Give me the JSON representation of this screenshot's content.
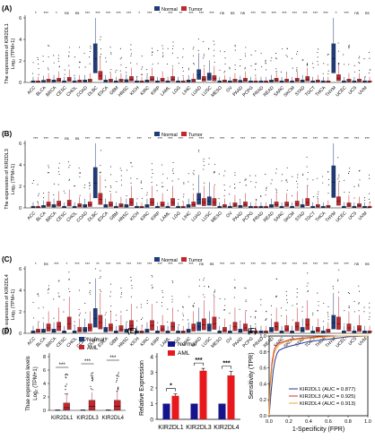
{
  "chart_data": [
    {
      "panel": "(A)",
      "type": "box",
      "ylabel": "The expression of KIR2DL1",
      "ylabel2": "Log₂ (TPM+1)",
      "ylim": [
        0,
        6
      ],
      "yticks": [
        0,
        2,
        4,
        6
      ],
      "legend": [
        "Normal",
        "Tumor"
      ],
      "categories": [
        "ACC",
        "BLCA",
        "BRCA",
        "CESC",
        "CHOL",
        "COAD",
        "DLBC",
        "ESCA",
        "GBM",
        "HNSC",
        "KICH",
        "KIRC",
        "KIRP",
        "LAML",
        "LGG",
        "LIHC",
        "LUAD",
        "LUSC",
        "MESO",
        "OV",
        "PAAD",
        "PCPG",
        "PRAD",
        "READ",
        "SARC",
        "SKCM",
        "STAD",
        "TGCT",
        "THCA",
        "THYM",
        "UCEC",
        "UCS",
        "UVM"
      ],
      "significance": [
        "*",
        "***",
        "*",
        "ns",
        "ns",
        "***",
        "***",
        "***",
        "***",
        "***",
        "*",
        "***",
        "*",
        "***",
        "**",
        "***",
        "***",
        "***",
        "ns",
        "ns",
        "ns",
        "***",
        "***",
        "***",
        "***",
        "***",
        "***",
        "***",
        "***",
        "*",
        "***",
        "ns",
        "ns"
      ],
      "median_normal": [
        0.05,
        0.08,
        0.1,
        0.05,
        0.05,
        0.1,
        2.2,
        0.1,
        0.05,
        0.12,
        0.05,
        0.1,
        0.05,
        0.05,
        0.05,
        0.1,
        0.7,
        0.5,
        0.05,
        0.05,
        0.08,
        0.05,
        0.05,
        0.1,
        0.05,
        0.05,
        0.1,
        0.05,
        0.05,
        2.2,
        0.05,
        0.05,
        0.05
      ],
      "median_tumor": [
        0.05,
        0.15,
        0.2,
        0.25,
        0.1,
        0.15,
        0.6,
        0.15,
        0.15,
        0.3,
        0.05,
        0.3,
        0.2,
        0.3,
        0.05,
        0.15,
        0.3,
        0.35,
        0.1,
        0.15,
        0.2,
        0.05,
        0.05,
        0.2,
        0.15,
        0.2,
        0.3,
        0.1,
        0.05,
        0.4,
        0.15,
        0.15,
        0.05
      ]
    },
    {
      "panel": "(B)",
      "type": "box",
      "ylabel": "The expression of KIR2DL3",
      "ylabel2": "Log₂ (TPM+1)",
      "ylim": [
        0,
        6
      ],
      "yticks": [
        0,
        2,
        4,
        6
      ],
      "legend": [
        "Normal",
        "Tumor"
      ],
      "categories": [
        "ACC",
        "BLCA",
        "BRCA",
        "CESC",
        "CHOL",
        "COAD",
        "DLBC",
        "ESCA",
        "GBM",
        "HNSC",
        "KICH",
        "KIRC",
        "KIRP",
        "LAML",
        "LGG",
        "LIHC",
        "LUAD",
        "LUSC",
        "MESO",
        "OV",
        "PAAD",
        "PCPG",
        "PRAD",
        "READ",
        "SARC",
        "SKCM",
        "STAD",
        "TGCT",
        "THCA",
        "THYM",
        "UCEC",
        "UCS",
        "UVM"
      ],
      "significance": [
        "***",
        "***",
        "***",
        "ns",
        "ns",
        "***",
        "***",
        "***",
        "***",
        "**",
        "***",
        "**",
        "***",
        "***",
        "***",
        "***",
        "***",
        "***",
        "***",
        "**",
        "***",
        "***",
        "***",
        "***",
        "***",
        "***",
        "***",
        "***",
        "***",
        "***",
        "***",
        "***",
        "***"
      ],
      "median_normal": [
        0.05,
        0.1,
        0.15,
        0.05,
        0.05,
        0.15,
        2.3,
        0.15,
        0.05,
        0.15,
        0.05,
        0.15,
        0.05,
        0.05,
        0.05,
        0.15,
        0.8,
        0.6,
        0.05,
        0.05,
        0.1,
        0.05,
        0.05,
        0.15,
        0.05,
        0.05,
        0.15,
        0.05,
        0.05,
        2.4,
        0.05,
        0.05,
        0.05
      ],
      "median_tumor": [
        0.05,
        0.3,
        0.35,
        0.4,
        0.2,
        0.3,
        0.8,
        0.3,
        0.2,
        0.5,
        0.05,
        0.5,
        0.3,
        0.5,
        0.05,
        0.3,
        0.5,
        0.5,
        0.15,
        0.25,
        0.3,
        0.05,
        0.05,
        0.3,
        0.3,
        0.35,
        0.5,
        0.15,
        0.1,
        0.6,
        0.25,
        0.2,
        0.05
      ]
    },
    {
      "panel": "(C)",
      "type": "box",
      "ylabel": "The expression of KIR2DL4",
      "ylabel2": "Log₂ (TPM+1)",
      "ylim": [
        0,
        6
      ],
      "yticks": [
        0,
        2,
        4,
        6
      ],
      "legend": [
        "Normal",
        "Tumor"
      ],
      "categories": [
        "ACC",
        "BLCA",
        "BRCA",
        "CESC",
        "CHOL",
        "COAD",
        "DLBC",
        "ESCA",
        "GBM",
        "HNSC",
        "KICH",
        "KIRC",
        "KIRP",
        "LAML",
        "LGG",
        "LIHC",
        "LUAD",
        "LUSC",
        "MESO",
        "OV",
        "PAAD",
        "PCPG",
        "PRAD",
        "READ",
        "SARC",
        "SKCM",
        "STAD",
        "TGCT",
        "THCA",
        "THYM",
        "UCEC",
        "UCS",
        "UVM"
      ],
      "significance": [
        "*",
        "ns",
        "***",
        "*",
        "***",
        "***",
        "**",
        "***",
        "***",
        "***",
        "***",
        "***",
        "***",
        "***",
        "***",
        "***",
        "ns",
        "ns",
        "***",
        "***",
        "***",
        "***",
        "***",
        "***",
        "***",
        "***",
        "***",
        "***",
        "***",
        "***",
        "***",
        "ns",
        "ns"
      ],
      "median_normal": [
        0.1,
        0.2,
        0.2,
        0.1,
        0.1,
        0.3,
        1.4,
        0.3,
        0.1,
        0.2,
        0.1,
        0.2,
        0.1,
        0.1,
        0.1,
        0.2,
        0.6,
        0.5,
        0.1,
        0.1,
        0.2,
        0.1,
        0.1,
        0.3,
        0.1,
        0.1,
        0.3,
        0.1,
        0.1,
        1.0,
        0.1,
        0.1,
        0.1
      ],
      "median_tumor": [
        0.2,
        0.5,
        0.6,
        0.9,
        0.3,
        0.5,
        1.0,
        0.5,
        0.4,
        0.7,
        0.1,
        0.7,
        0.4,
        0.6,
        0.1,
        0.5,
        0.8,
        0.9,
        0.3,
        0.6,
        0.5,
        0.1,
        0.1,
        0.6,
        0.4,
        0.6,
        0.8,
        0.3,
        0.2,
        0.9,
        0.5,
        0.4,
        0.1
      ]
    },
    {
      "panel": "(D)",
      "type": "box",
      "ylabel": "Thae expression levels",
      "ylabel2": "Log₂ (TPM+1)",
      "ylim": [
        0,
        8
      ],
      "yticks": [
        0,
        2,
        4,
        6,
        8
      ],
      "legend": [
        "Normal",
        "AML"
      ],
      "categories": [
        "KIR2DL1",
        "KIR2DL3",
        "KIR2DL4"
      ],
      "significance": [
        "***",
        "***",
        "***"
      ],
      "median_normal": [
        0.02,
        0.02,
        0.02
      ],
      "median_tumor": [
        0.4,
        0.6,
        0.6
      ]
    },
    {
      "panel": "(E)",
      "type": "bar",
      "ylabel": "Relative Expression",
      "ylim": [
        0,
        4
      ],
      "yticks": [
        0,
        1,
        2,
        3,
        4
      ],
      "legend": [
        "Normal",
        "AML"
      ],
      "categories": [
        "KIR2DL1",
        "KIR2DL3",
        "KIR2DL4"
      ],
      "significance": [
        "*",
        "***",
        "***"
      ],
      "series": [
        {
          "name": "Normal",
          "values": [
            1.0,
            1.0,
            1.0
          ],
          "errors": [
            0.0,
            0.0,
            0.0
          ]
        },
        {
          "name": "AML",
          "values": [
            1.5,
            3.1,
            2.8
          ],
          "errors": [
            0.12,
            0.15,
            0.25
          ]
        }
      ]
    },
    {
      "panel": "(F)",
      "type": "line",
      "xlabel": "1-Specificity (FPR)",
      "ylabel": "Sensitivity (TPR)",
      "xlim": [
        0,
        1
      ],
      "ylim": [
        0,
        1
      ],
      "ticks": [
        0.0,
        0.2,
        0.4,
        0.6,
        0.8,
        1.0
      ],
      "series": [
        {
          "name": "KIR2DL1 (AUC = 0.877)",
          "color": "#2b3a8f",
          "x": [
            0,
            0.02,
            0.04,
            0.06,
            0.08,
            0.1,
            0.15,
            0.2,
            0.3,
            0.4,
            0.6,
            0.8,
            1.0
          ],
          "y": [
            0,
            0.3,
            0.55,
            0.7,
            0.78,
            0.82,
            0.85,
            0.87,
            0.9,
            0.93,
            0.96,
            0.99,
            1.0
          ]
        },
        {
          "name": "KIR2DL3 (AUC = 0.925)",
          "color": "#d9312b",
          "x": [
            0,
            0.01,
            0.03,
            0.05,
            0.07,
            0.1,
            0.15,
            0.2,
            0.3,
            0.5,
            0.7,
            1.0
          ],
          "y": [
            0,
            0.4,
            0.68,
            0.82,
            0.88,
            0.91,
            0.93,
            0.95,
            0.97,
            0.99,
            1.0,
            1.0
          ]
        },
        {
          "name": "KIR2DL4 (AUC = 0.913)",
          "color": "#e8a33c",
          "x": [
            0,
            0.01,
            0.03,
            0.05,
            0.08,
            0.1,
            0.15,
            0.2,
            0.3,
            0.5,
            0.7,
            1.0
          ],
          "y": [
            0,
            0.35,
            0.62,
            0.78,
            0.86,
            0.89,
            0.92,
            0.94,
            0.96,
            0.98,
            1.0,
            1.0
          ]
        }
      ]
    }
  ],
  "colors": {
    "normal": "#1f3b7a",
    "tumor": "#c1272d",
    "aml_bar": "#e8191c",
    "normal_bar": "#14148c"
  }
}
